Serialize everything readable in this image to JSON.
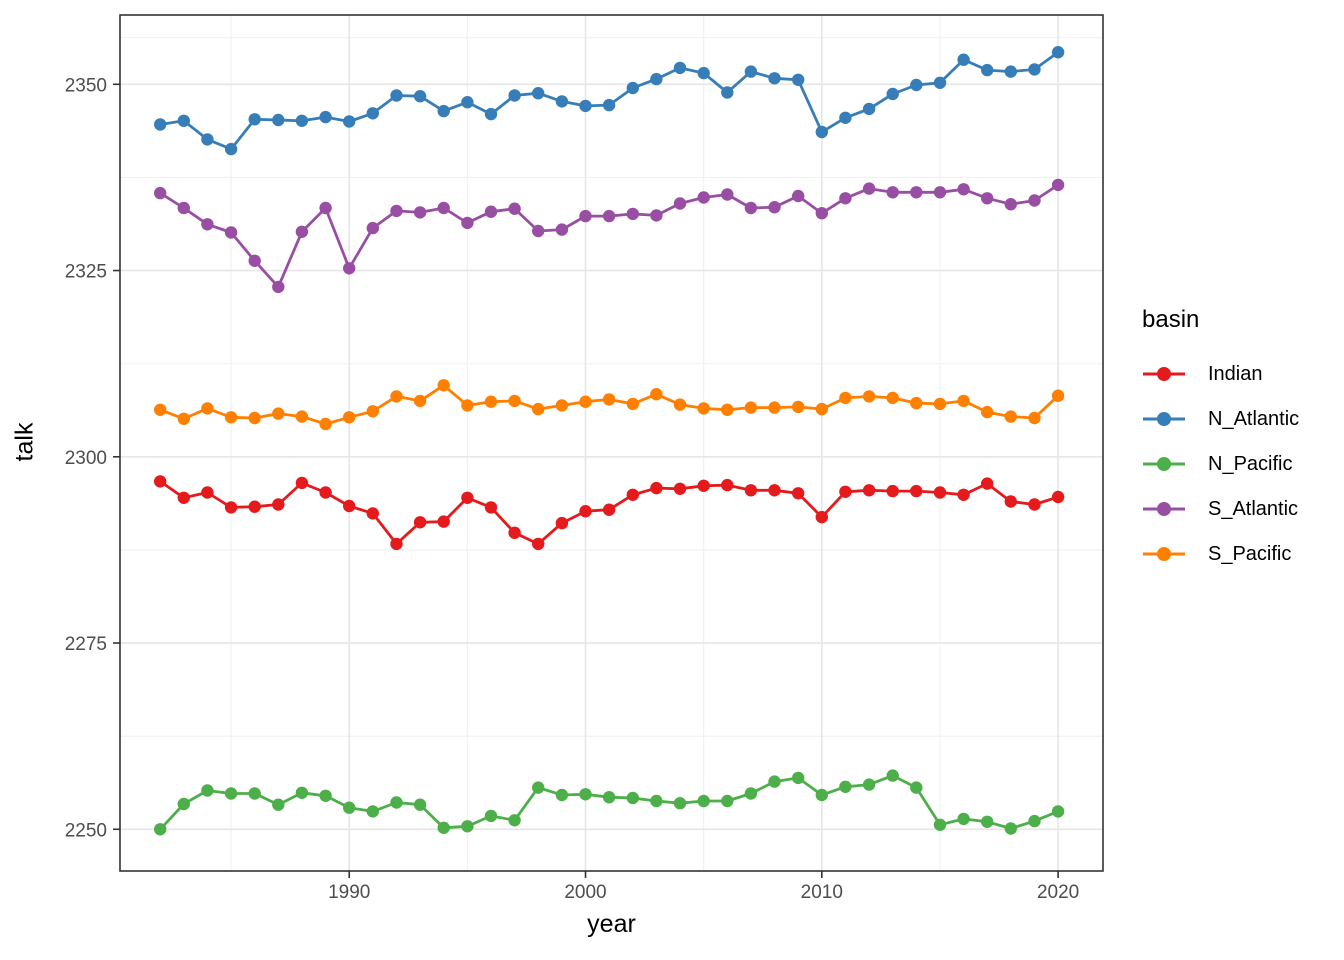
{
  "chart_data": {
    "type": "line",
    "title": "",
    "xlabel": "year",
    "ylabel": "talk",
    "legend_title": "basin",
    "legend_position": "right",
    "grid": true,
    "x_ticks": [
      1990,
      2000,
      2010,
      2020
    ],
    "x_minor_ticks": [
      1985,
      1995,
      2005,
      2015
    ],
    "y_ticks": [
      2250,
      2275,
      2300,
      2325,
      2350
    ],
    "y_minor_ticks": [
      2262.5,
      2287.5,
      2312.5,
      2337.5,
      2356.25
    ],
    "x_range": [
      1980.3,
      2021.9
    ],
    "y_range": [
      2244.4,
      2359.3
    ],
    "x": [
      1982,
      1983,
      1984,
      1985,
      1986,
      1987,
      1988,
      1989,
      1990,
      1991,
      1992,
      1993,
      1994,
      1995,
      1996,
      1997,
      1998,
      1999,
      2000,
      2001,
      2002,
      2003,
      2004,
      2005,
      2006,
      2007,
      2008,
      2009,
      2010,
      2011,
      2012,
      2013,
      2014,
      2015,
      2016,
      2017,
      2018,
      2019,
      2020
    ],
    "series": [
      {
        "name": "Indian",
        "color": "#E41A1C",
        "values": [
          2296.7,
          2294.5,
          2295.2,
          2293.2,
          2293.3,
          2293.6,
          2296.5,
          2295.2,
          2293.4,
          2292.4,
          2288.3,
          2291.2,
          2291.3,
          2294.5,
          2293.2,
          2289.8,
          2288.3,
          2291.1,
          2292.7,
          2292.9,
          2294.9,
          2295.8,
          2295.7,
          2296.1,
          2296.2,
          2295.5,
          2295.5,
          2295.1,
          2291.9,
          2295.3,
          2295.5,
          2295.4,
          2295.4,
          2295.2,
          2294.9,
          2296.4,
          2294.0,
          2293.6,
          2294.6
        ]
      },
      {
        "name": "N_Atlantic",
        "color": "#377EB8",
        "values": [
          2344.6,
          2345.1,
          2342.6,
          2341.3,
          2345.3,
          2345.2,
          2345.1,
          2345.6,
          2345.0,
          2346.1,
          2348.5,
          2348.4,
          2346.4,
          2347.6,
          2346.0,
          2348.5,
          2348.8,
          2347.7,
          2347.1,
          2347.2,
          2349.5,
          2350.7,
          2352.2,
          2351.5,
          2348.9,
          2351.7,
          2350.8,
          2350.6,
          2343.6,
          2345.5,
          2346.7,
          2348.7,
          2349.9,
          2350.2,
          2353.3,
          2351.9,
          2351.7,
          2352.0,
          2354.3
        ]
      },
      {
        "name": "N_Pacific",
        "color": "#4DAF4A",
        "values": [
          2250.0,
          2253.4,
          2255.2,
          2254.8,
          2254.8,
          2253.3,
          2254.9,
          2254.5,
          2252.9,
          2252.4,
          2253.6,
          2253.3,
          2250.2,
          2250.4,
          2251.8,
          2251.2,
          2255.6,
          2254.6,
          2254.7,
          2254.3,
          2254.2,
          2253.8,
          2253.5,
          2253.8,
          2253.8,
          2254.8,
          2256.4,
          2256.9,
          2254.6,
          2255.7,
          2256.0,
          2257.2,
          2255.6,
          2250.6,
          2251.4,
          2251.0,
          2250.1,
          2251.1,
          2252.4
        ]
      },
      {
        "name": "S_Atlantic",
        "color": "#984EA3",
        "values": [
          2335.4,
          2333.4,
          2331.2,
          2330.1,
          2326.3,
          2322.8,
          2330.2,
          2333.4,
          2325.3,
          2330.7,
          2333.0,
          2332.8,
          2333.4,
          2331.4,
          2332.9,
          2333.3,
          2330.3,
          2330.5,
          2332.3,
          2332.3,
          2332.6,
          2332.4,
          2334.0,
          2334.8,
          2335.2,
          2333.4,
          2333.5,
          2335.0,
          2332.7,
          2334.7,
          2336.0,
          2335.5,
          2335.5,
          2335.5,
          2335.9,
          2334.7,
          2333.9,
          2334.4,
          2336.5
        ]
      },
      {
        "name": "S_Pacific",
        "color": "#FF7F00",
        "values": [
          2306.3,
          2305.1,
          2306.5,
          2305.3,
          2305.2,
          2305.8,
          2305.4,
          2304.4,
          2305.3,
          2306.1,
          2308.1,
          2307.5,
          2309.6,
          2306.9,
          2307.4,
          2307.5,
          2306.4,
          2306.9,
          2307.4,
          2307.7,
          2307.1,
          2308.4,
          2307.0,
          2306.5,
          2306.3,
          2306.6,
          2306.6,
          2306.7,
          2306.4,
          2307.9,
          2308.1,
          2307.9,
          2307.2,
          2307.1,
          2307.5,
          2306.0,
          2305.4,
          2305.2,
          2308.2
        ]
      }
    ],
    "style": {
      "panel_border_color": "#333333",
      "major_grid_color": "#E6E6E6",
      "minor_grid_color": "#F1F1F1",
      "tick_label_color": "#4D4D4D",
      "background": "#FFFFFF"
    }
  }
}
